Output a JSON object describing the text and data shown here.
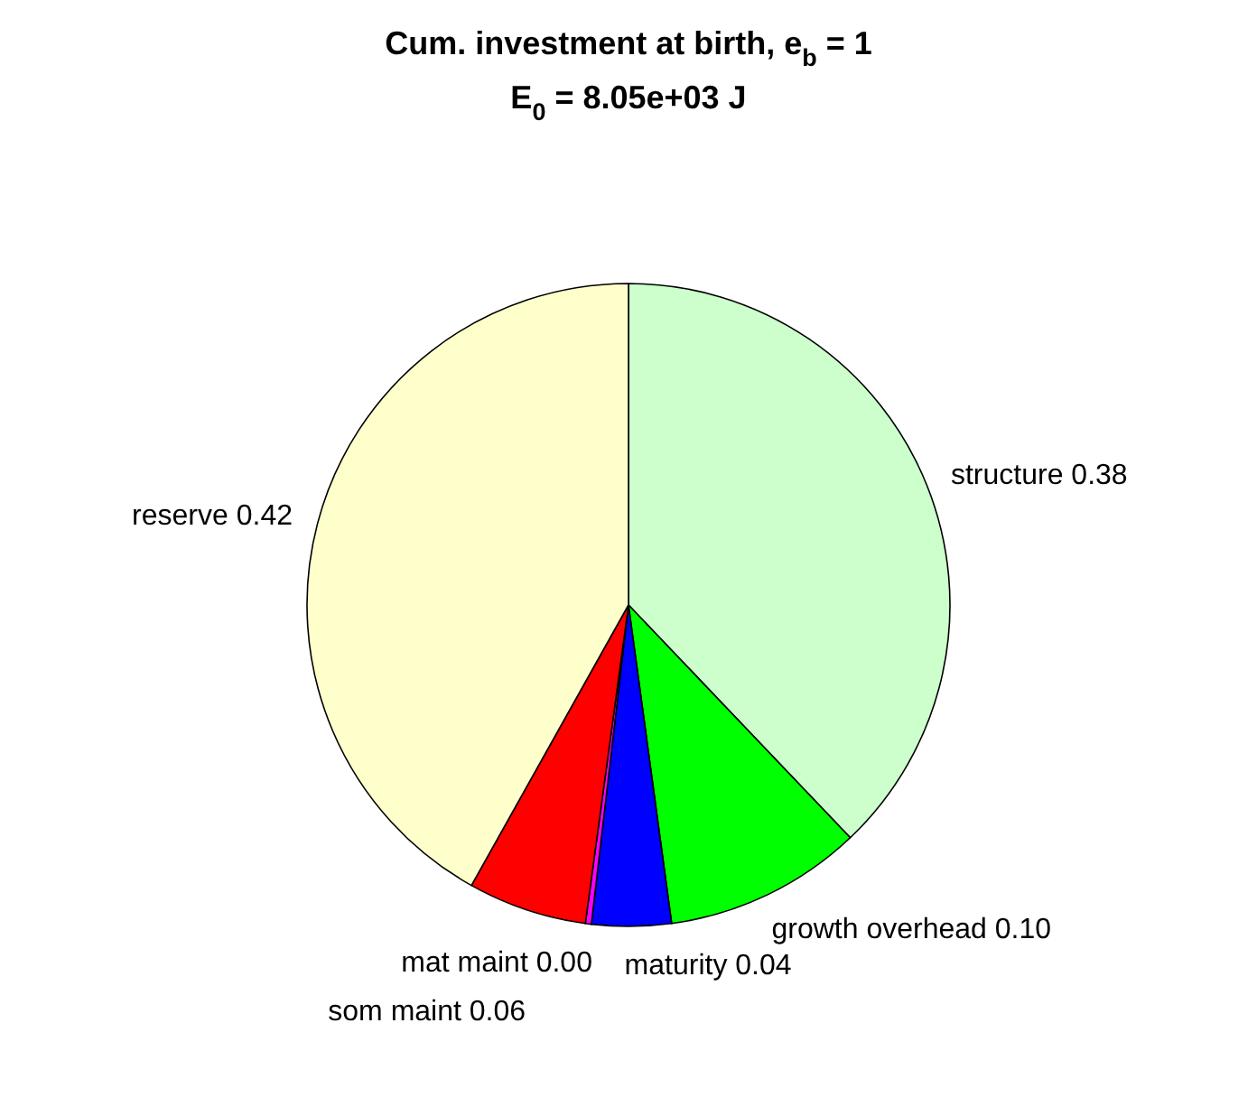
{
  "chart_data": {
    "type": "pie",
    "title": "Cum. investment at birth, e$_{b}$ = 1",
    "subtitle": "E$_{0}$ = 8.05e+03 J",
    "categories": [
      "structure",
      "growth overhead",
      "maturity",
      "mat maint",
      "som maint",
      "reserve"
    ],
    "values": [
      0.38,
      0.1,
      0.04,
      0.003,
      0.06,
      0.42
    ],
    "value_labels": [
      "0.38",
      "0.10",
      "0.04",
      "0.00",
      "0.06",
      "0.42"
    ],
    "colors": [
      "#ccffcc",
      "#00ff00",
      "#0000ff",
      "#ff00ff",
      "#ff0000",
      "#ffffcc"
    ]
  }
}
